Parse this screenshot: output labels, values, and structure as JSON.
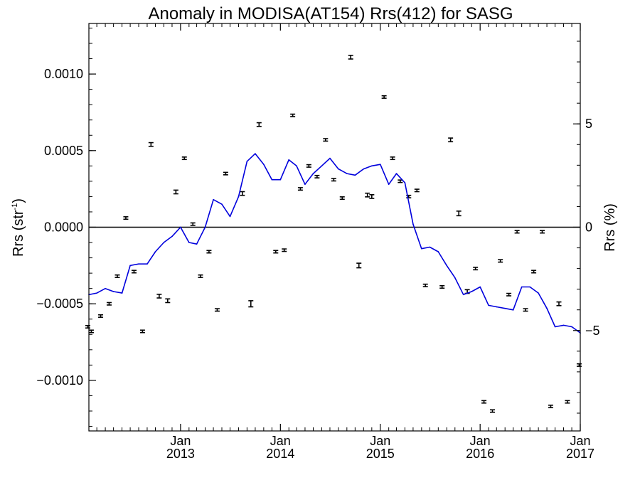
{
  "chart_data": {
    "type": "scatter",
    "title": "Anomaly in MODISA(AT154) Rrs(412) for SASG",
    "ylabel_left_base": "Rrs (str",
    "ylabel_left_sup": "-1",
    "ylabel_left_close": ")",
    "ylabel_right": "Rrs (%)",
    "x_range": [
      "2012-02-01",
      "2017-01-01"
    ],
    "ylim_left": [
      -0.00133,
      0.00133
    ],
    "ylim_right": [
      -9.86,
      9.86
    ],
    "x_ticks": [
      {
        "date": "2013-01-01",
        "line1": "Jan",
        "line2": "2013"
      },
      {
        "date": "2014-01-01",
        "line1": "Jan",
        "line2": "2014"
      },
      {
        "date": "2015-01-01",
        "line1": "Jan",
        "line2": "2015"
      },
      {
        "date": "2016-01-01",
        "line1": "Jan",
        "line2": "2016"
      },
      {
        "date": "2017-01-01",
        "line1": "Jan",
        "line2": "2017"
      }
    ],
    "y_ticks_left": [
      {
        "value": 0.001,
        "label": "0.0010"
      },
      {
        "value": 0.0005,
        "label": "0.0005"
      },
      {
        "value": 0.0,
        "label": "0.0000"
      },
      {
        "value": -0.0005,
        "label": "−0.0005"
      },
      {
        "value": -0.001,
        "label": "−0.0010"
      }
    ],
    "y_ticks_right": [
      {
        "value": 5,
        "label": "5"
      },
      {
        "value": 0,
        "label": "0"
      },
      {
        "value": -5,
        "label": "−5"
      }
    ],
    "zero_line": true,
    "grid": false,
    "series": [
      {
        "type": "scatter-errorbar",
        "axis": "left",
        "color": "#000000",
        "points": [
          {
            "x": "2012-01-28",
            "y": -0.00065,
            "err": 8e-06
          },
          {
            "x": "2012-02-10",
            "y": -0.00068,
            "err": 8e-06
          },
          {
            "x": "2012-03-15",
            "y": -0.00058,
            "err": 8e-06
          },
          {
            "x": "2012-04-15",
            "y": -0.0005,
            "err": 8e-06
          },
          {
            "x": "2012-05-15",
            "y": -0.00032,
            "err": 8e-06
          },
          {
            "x": "2012-06-15",
            "y": 6e-05,
            "err": 8e-06
          },
          {
            "x": "2012-07-15",
            "y": -0.00029,
            "err": 8e-06
          },
          {
            "x": "2012-08-15",
            "y": -0.00068,
            "err": 8e-06
          },
          {
            "x": "2012-09-15",
            "y": 0.00054,
            "err": 1.2e-05
          },
          {
            "x": "2012-10-15",
            "y": -0.00045,
            "err": 1.2e-05
          },
          {
            "x": "2012-11-15",
            "y": -0.00048,
            "err": 1.2e-05
          },
          {
            "x": "2012-12-15",
            "y": 0.00023,
            "err": 1.2e-05
          },
          {
            "x": "2013-01-15",
            "y": 0.00045,
            "err": 8e-06
          },
          {
            "x": "2013-02-15",
            "y": 2e-05,
            "err": 8e-06
          },
          {
            "x": "2013-03-15",
            "y": -0.00032,
            "err": 8e-06
          },
          {
            "x": "2013-04-15",
            "y": -0.00016,
            "err": 8e-06
          },
          {
            "x": "2013-05-15",
            "y": -0.00054,
            "err": 8e-06
          },
          {
            "x": "2013-06-15",
            "y": 0.00035,
            "err": 8e-06
          },
          {
            "x": "2013-08-15",
            "y": 0.00022,
            "err": 1.2e-05
          },
          {
            "x": "2013-09-15",
            "y": -0.0005,
            "err": 2e-05
          },
          {
            "x": "2013-10-15",
            "y": 0.00067,
            "err": 1.2e-05
          },
          {
            "x": "2013-12-15",
            "y": -0.00016,
            "err": 8e-06
          },
          {
            "x": "2014-01-15",
            "y": -0.00015,
            "err": 8e-06
          },
          {
            "x": "2014-02-15",
            "y": 0.00073,
            "err": 8e-06
          },
          {
            "x": "2014-03-15",
            "y": 0.00025,
            "err": 8e-06
          },
          {
            "x": "2014-04-15",
            "y": 0.0004,
            "err": 8e-06
          },
          {
            "x": "2014-05-15",
            "y": 0.00033,
            "err": 8e-06
          },
          {
            "x": "2014-06-15",
            "y": 0.00057,
            "err": 8e-06
          },
          {
            "x": "2014-07-15",
            "y": 0.00031,
            "err": 8e-06
          },
          {
            "x": "2014-08-15",
            "y": 0.00019,
            "err": 8e-06
          },
          {
            "x": "2014-09-15",
            "y": 0.00111,
            "err": 1.2e-05
          },
          {
            "x": "2014-10-15",
            "y": -0.00025,
            "err": 1.5e-05
          },
          {
            "x": "2014-11-15",
            "y": 0.00021,
            "err": 1.2e-05
          },
          {
            "x": "2014-12-01",
            "y": 0.0002,
            "err": 1.2e-05
          },
          {
            "x": "2015-01-15",
            "y": 0.00085,
            "err": 8e-06
          },
          {
            "x": "2015-02-15",
            "y": 0.00045,
            "err": 8e-06
          },
          {
            "x": "2015-03-15",
            "y": 0.0003,
            "err": 8e-06
          },
          {
            "x": "2015-04-15",
            "y": 0.0002,
            "err": 8e-06
          },
          {
            "x": "2015-05-15",
            "y": 0.00024,
            "err": 8e-06
          },
          {
            "x": "2015-06-15",
            "y": -0.00038,
            "err": 8e-06
          },
          {
            "x": "2015-08-15",
            "y": -0.00039,
            "err": 8e-06
          },
          {
            "x": "2015-09-15",
            "y": 0.00057,
            "err": 1.2e-05
          },
          {
            "x": "2015-10-15",
            "y": 9e-05,
            "err": 1.5e-05
          },
          {
            "x": "2015-11-15",
            "y": -0.00042,
            "err": 1.2e-05
          },
          {
            "x": "2015-12-15",
            "y": -0.00027,
            "err": 8e-06
          },
          {
            "x": "2016-01-15",
            "y": -0.00114,
            "err": 8e-06
          },
          {
            "x": "2016-02-15",
            "y": -0.0012,
            "err": 8e-06
          },
          {
            "x": "2016-03-15",
            "y": -0.00022,
            "err": 8e-06
          },
          {
            "x": "2016-04-15",
            "y": -0.00044,
            "err": 8e-06
          },
          {
            "x": "2016-05-15",
            "y": -3e-05,
            "err": 8e-06
          },
          {
            "x": "2016-06-15",
            "y": -0.00054,
            "err": 8e-06
          },
          {
            "x": "2016-07-15",
            "y": -0.00029,
            "err": 8e-06
          },
          {
            "x": "2016-08-15",
            "y": -3e-05,
            "err": 8e-06
          },
          {
            "x": "2016-09-15",
            "y": -0.00117,
            "err": 8e-06
          },
          {
            "x": "2016-10-15",
            "y": -0.0005,
            "err": 1.2e-05
          },
          {
            "x": "2016-11-15",
            "y": -0.00114,
            "err": 8e-06
          },
          {
            "x": "2016-12-28",
            "y": -0.0009,
            "err": 8e-06
          }
        ]
      },
      {
        "type": "line",
        "axis": "left",
        "color": "#0000dd",
        "points": [
          {
            "x": "2012-02-01",
            "y": -0.00044
          },
          {
            "x": "2012-03-01",
            "y": -0.00043
          },
          {
            "x": "2012-04-01",
            "y": -0.0004
          },
          {
            "x": "2012-05-01",
            "y": -0.00042
          },
          {
            "x": "2012-06-01",
            "y": -0.00043
          },
          {
            "x": "2012-07-01",
            "y": -0.00025
          },
          {
            "x": "2012-08-01",
            "y": -0.00024
          },
          {
            "x": "2012-09-01",
            "y": -0.00024
          },
          {
            "x": "2012-10-01",
            "y": -0.00016
          },
          {
            "x": "2012-11-01",
            "y": -0.0001
          },
          {
            "x": "2012-12-01",
            "y": -6e-05
          },
          {
            "x": "2013-01-01",
            "y": 0.0
          },
          {
            "x": "2013-02-01",
            "y": -0.0001
          },
          {
            "x": "2013-03-01",
            "y": -0.00011
          },
          {
            "x": "2013-04-01",
            "y": 0.0
          },
          {
            "x": "2013-05-01",
            "y": 0.00018
          },
          {
            "x": "2013-06-01",
            "y": 0.00015
          },
          {
            "x": "2013-07-01",
            "y": 7e-05
          },
          {
            "x": "2013-08-01",
            "y": 0.0002
          },
          {
            "x": "2013-09-01",
            "y": 0.00043
          },
          {
            "x": "2013-10-01",
            "y": 0.00048
          },
          {
            "x": "2013-11-01",
            "y": 0.00041
          },
          {
            "x": "2013-12-01",
            "y": 0.00031
          },
          {
            "x": "2014-01-01",
            "y": 0.00031
          },
          {
            "x": "2014-02-01",
            "y": 0.00044
          },
          {
            "x": "2014-03-01",
            "y": 0.0004
          },
          {
            "x": "2014-04-01",
            "y": 0.00028
          },
          {
            "x": "2014-05-01",
            "y": 0.00035
          },
          {
            "x": "2014-06-01",
            "y": 0.0004
          },
          {
            "x": "2014-07-01",
            "y": 0.00045
          },
          {
            "x": "2014-08-01",
            "y": 0.00038
          },
          {
            "x": "2014-09-01",
            "y": 0.00035
          },
          {
            "x": "2014-10-01",
            "y": 0.00034
          },
          {
            "x": "2014-11-01",
            "y": 0.00038
          },
          {
            "x": "2014-12-01",
            "y": 0.0004
          },
          {
            "x": "2015-01-01",
            "y": 0.00041
          },
          {
            "x": "2015-02-01",
            "y": 0.00028
          },
          {
            "x": "2015-03-01",
            "y": 0.00035
          },
          {
            "x": "2015-04-01",
            "y": 0.00029
          },
          {
            "x": "2015-05-01",
            "y": 2e-05
          },
          {
            "x": "2015-06-01",
            "y": -0.00014
          },
          {
            "x": "2015-07-01",
            "y": -0.00013
          },
          {
            "x": "2015-08-01",
            "y": -0.00016
          },
          {
            "x": "2015-09-01",
            "y": -0.00025
          },
          {
            "x": "2015-10-01",
            "y": -0.00033
          },
          {
            "x": "2015-11-01",
            "y": -0.00044
          },
          {
            "x": "2015-12-01",
            "y": -0.00042
          },
          {
            "x": "2016-01-01",
            "y": -0.00039
          },
          {
            "x": "2016-02-01",
            "y": -0.00051
          },
          {
            "x": "2016-03-01",
            "y": -0.00052
          },
          {
            "x": "2016-04-01",
            "y": -0.00053
          },
          {
            "x": "2016-05-01",
            "y": -0.00054
          },
          {
            "x": "2016-06-01",
            "y": -0.00039
          },
          {
            "x": "2016-07-01",
            "y": -0.00039
          },
          {
            "x": "2016-08-01",
            "y": -0.00043
          },
          {
            "x": "2016-09-01",
            "y": -0.00053
          },
          {
            "x": "2016-10-01",
            "y": -0.00065
          },
          {
            "x": "2016-11-01",
            "y": -0.00064
          },
          {
            "x": "2016-12-01",
            "y": -0.00065
          },
          {
            "x": "2017-01-01",
            "y": -0.00069
          }
        ]
      }
    ]
  }
}
